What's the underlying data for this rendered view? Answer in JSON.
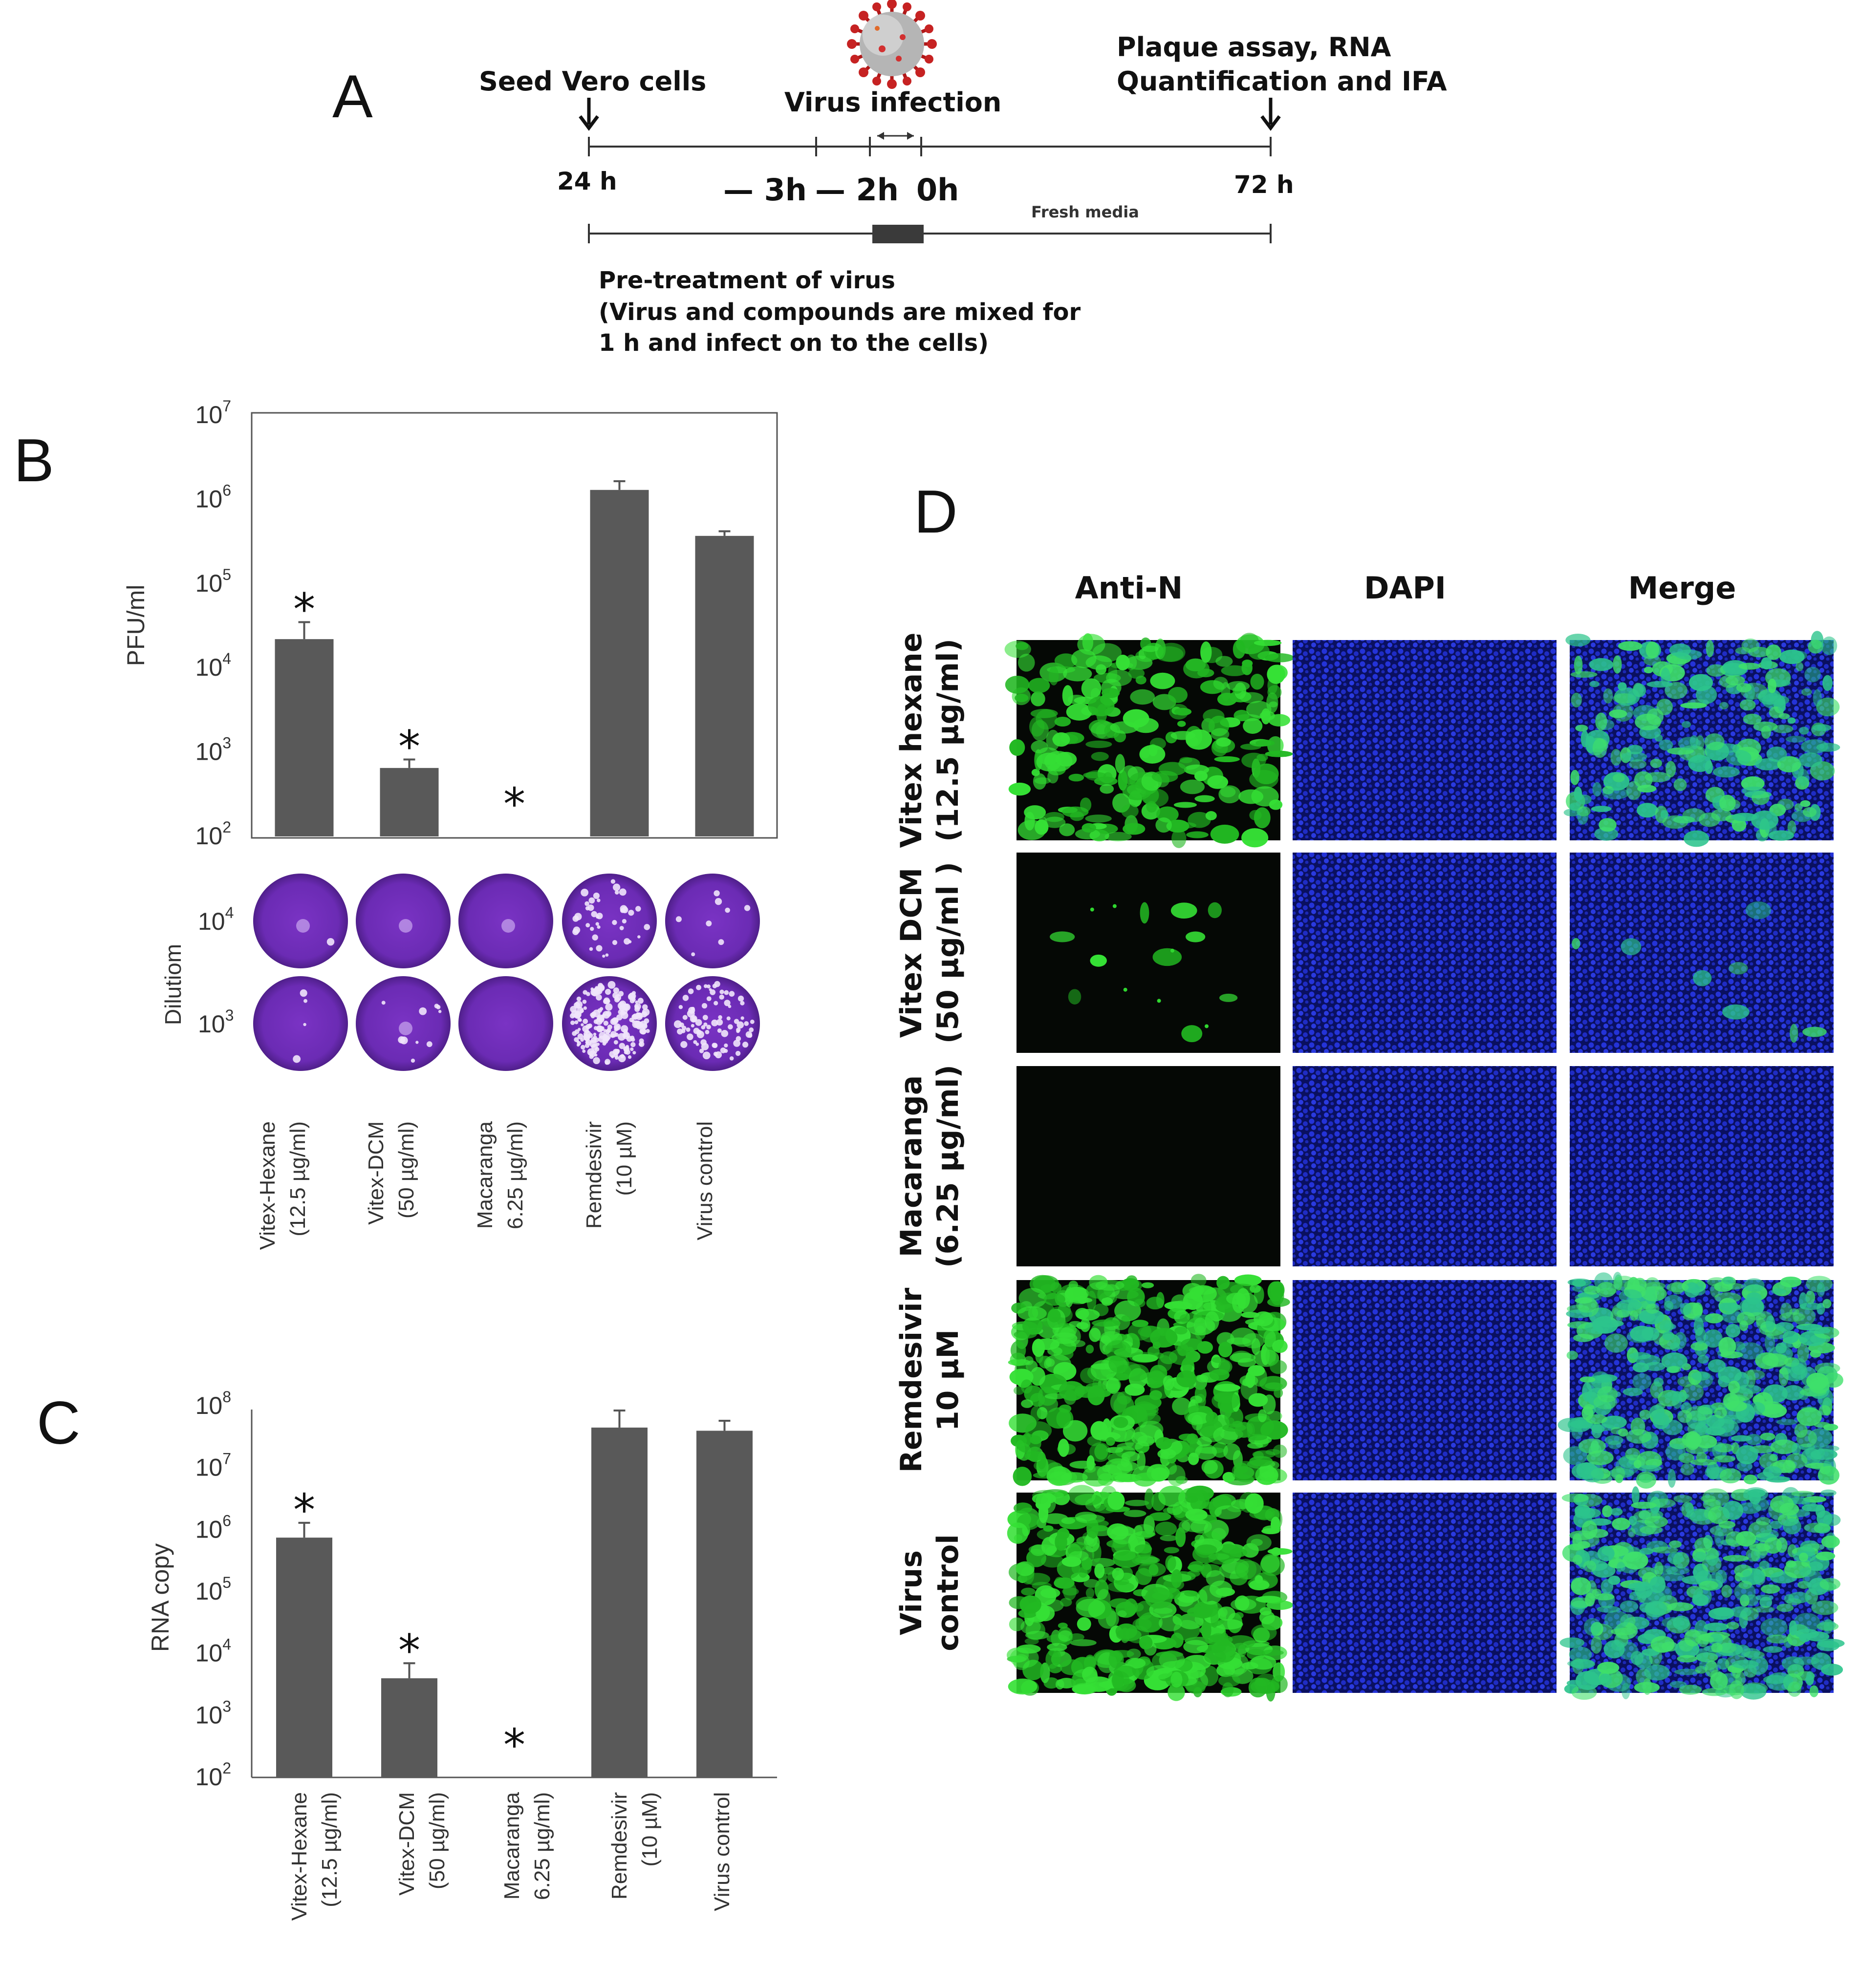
{
  "panels": {
    "A": "A",
    "B": "B",
    "C": "C",
    "D": "D"
  },
  "timeline": {
    "seed": "Seed Vero cells",
    "virus_infection": "Virus infection",
    "plaque_line1": "Plaque assay, RNA",
    "plaque_line2": "Quantification and IFA",
    "t24": "24 h",
    "tm3": "— 3h",
    "tm2": "— 2h",
    "t0": "0h",
    "t72": "72 h",
    "fresh": "Fresh media",
    "pre1": "Pre-treatment of virus",
    "pre2": "(Virus and compounds are mixed for",
    "pre3": "1 h and infect on to the cells)"
  },
  "conditions": [
    {
      "l1": "Vitex-Hexane",
      "l2": "(12.5 µg/ml)"
    },
    {
      "l1": "Vitex-DCM",
      "l2": "(50 µg/ml)"
    },
    {
      "l1": "Macaranga",
      "l2": "6.25 µg/ml)"
    },
    {
      "l1": "Remdesivir",
      "l2": "(10 µM)"
    },
    {
      "l1": "Virus control",
      "l2": ""
    }
  ],
  "chart_data": [
    {
      "type": "bar",
      "panel": "B",
      "ylabel": "PFU/ml",
      "yscale": "log",
      "ylim": [
        100,
        10000000
      ],
      "ytick_labels": [
        {
          "base": "10",
          "exp": "2"
        },
        {
          "base": "10",
          "exp": "3"
        },
        {
          "base": "10",
          "exp": "4"
        },
        {
          "base": "10",
          "exp": "5"
        },
        {
          "base": "10",
          "exp": "6"
        },
        {
          "base": "10",
          "exp": "7"
        }
      ],
      "categories": [
        "Vitex-Hexane (12.5 µg/ml)",
        "Vitex-DCM (50 µg/ml)",
        "Macaranga 6.25 µg/ml)",
        "Remdesivir (10 µM)",
        "Virus control"
      ],
      "values": [
        22000,
        650,
        null,
        1300000,
        370000
      ],
      "error_top": [
        35000,
        820,
        null,
        1650000,
        420000
      ],
      "significance": [
        "*",
        "*",
        "*",
        "",
        ""
      ]
    },
    {
      "type": "bar",
      "panel": "C",
      "ylabel": "RNA copy",
      "yscale": "log",
      "ylim": [
        100,
        100000000
      ],
      "ytick_labels": [
        {
          "base": "10",
          "exp": "2"
        },
        {
          "base": "10",
          "exp": "3"
        },
        {
          "base": "10",
          "exp": "4"
        },
        {
          "base": "10",
          "exp": "5"
        },
        {
          "base": "10",
          "exp": "6"
        },
        {
          "base": "10",
          "exp": "7"
        },
        {
          "base": "10",
          "exp": "8"
        }
      ],
      "categories": [
        "Vitex-Hexane (12.5 µg/ml)",
        "Vitex-DCM (50 µg/ml)",
        "Macaranga 6.25 µg/ml)",
        "Remdesivir (10 µM)",
        "Virus control"
      ],
      "values": [
        750000,
        4000,
        null,
        45000000,
        40000000
      ],
      "error_top": [
        1300000,
        7000,
        null,
        85000000,
        58000000
      ],
      "significance": [
        "*",
        "*",
        "*",
        "",
        ""
      ]
    }
  ],
  "plaques": {
    "ylabel": "Dilutiom",
    "rows": [
      {
        "base": "10",
        "exp": "4"
      },
      {
        "base": "10",
        "exp": "3"
      }
    ]
  },
  "ifa": {
    "columns": [
      "Anti-N",
      "DAPI",
      "Merge"
    ],
    "rows": [
      {
        "l1": "Vitex hexane",
        "l2": "(12.5 µg/ml)",
        "green": 0.45
      },
      {
        "l1": "Vitex DCM",
        "l2": "(50 µg/ml )",
        "green": 0.02
      },
      {
        "l1": "Macaranga",
        "l2": "(6.25 µg/ml)",
        "green": 0.0
      },
      {
        "l1": "Remdesivir",
        "l2": "10 µM",
        "green": 0.85
      },
      {
        "l1": "Virus",
        "l2": "control",
        "green": 0.8
      }
    ]
  },
  "colors": {
    "bar": "#595959",
    "green": "#2fd62f",
    "blue": "#1f2fd0",
    "plaque": "#6a2cb0"
  }
}
